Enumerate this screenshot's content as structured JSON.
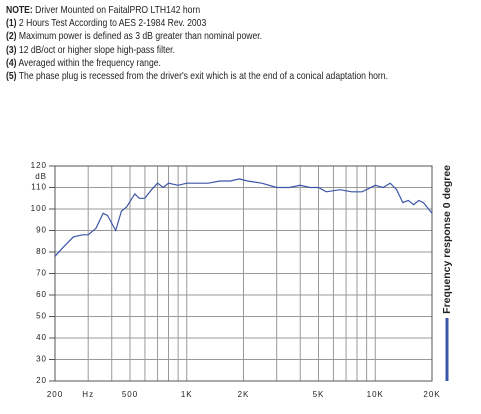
{
  "notes": [
    {
      "label": "NOTE:",
      "text": "Driver Mounted on FaitalPRO LTH142 horn"
    },
    {
      "label": "(1)",
      "text": "2 Hours Test According to AES 2-1984 Rev. 2003"
    },
    {
      "label": "(2)",
      "text": "Maximum power is defined as 3 dB greater than nominal power."
    },
    {
      "label": "(3)",
      "text": "12 dB/oct or higher slope high-pass filter."
    },
    {
      "label": "(4)",
      "text": "Averaged within the frequency range."
    },
    {
      "label": "(5)",
      "text": "The phase plug is recessed from the driver's exit which is at the end of a conical adaptation horn."
    }
  ],
  "chart_data": {
    "type": "line",
    "y_unit": "dB",
    "log_x": true,
    "grid": true,
    "xlim": [
      200,
      20000
    ],
    "ylim": [
      20,
      120
    ],
    "yticks": [
      20,
      30,
      40,
      50,
      60,
      70,
      80,
      90,
      100,
      110,
      120
    ],
    "xticks": [
      200,
      {
        "value": 300,
        "label": "Hz"
      },
      500,
      {
        "value": 1000,
        "label": "1K"
      },
      {
        "value": 2000,
        "label": "2K"
      },
      {
        "value": 5000,
        "label": "5K"
      },
      {
        "value": 10000,
        "label": "10K"
      },
      {
        "value": 20000,
        "label": "20K"
      }
    ],
    "xgrid": [
      200,
      300,
      400,
      500,
      600,
      700,
      800,
      900,
      1000,
      2000,
      3000,
      4000,
      5000,
      6000,
      7000,
      8000,
      9000,
      10000,
      20000
    ],
    "x": [
      200,
      220,
      250,
      280,
      300,
      330,
      360,
      380,
      420,
      450,
      480,
      530,
      560,
      600,
      650,
      700,
      750,
      800,
      900,
      1000,
      1100,
      1300,
      1500,
      1700,
      1900,
      2100,
      2500,
      3000,
      3500,
      4000,
      4500,
      5000,
      5500,
      6500,
      7500,
      8500,
      10000,
      11000,
      12000,
      13000,
      14000,
      15000,
      16000,
      17000,
      18000,
      20000
    ],
    "series": [
      {
        "name": "Frequency response 0 degree",
        "color": "#3a56a8",
        "values": [
          78,
          82,
          87,
          88,
          88,
          91,
          98,
          97,
          90,
          99,
          101,
          107,
          105,
          105,
          109,
          112,
          110,
          112,
          111,
          112,
          112,
          112,
          113,
          113,
          114,
          113,
          112,
          110,
          110,
          111,
          110,
          110,
          108,
          109,
          108,
          108,
          111,
          110,
          112,
          109,
          103,
          104,
          102,
          104,
          103,
          98
        ]
      }
    ]
  }
}
